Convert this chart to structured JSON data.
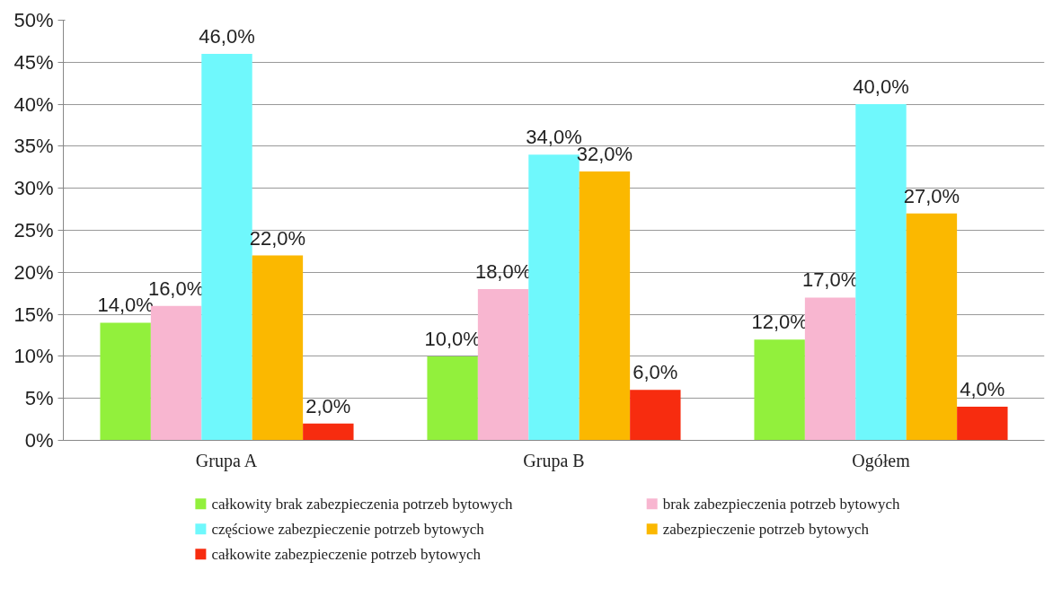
{
  "chart_data": {
    "type": "bar",
    "categories": [
      "Grupa A",
      "Grupa B",
      "Ogółem"
    ],
    "series": [
      {
        "name": "całkowity brak zabezpieczenia potrzeb bytowych",
        "color": "#92f03c",
        "values": [
          14,
          10,
          12
        ],
        "value_labels": [
          "14,0%",
          "10,0%",
          "12,0%"
        ]
      },
      {
        "name": "brak zabezpieczenia potrzeb bytowych",
        "color": "#f8b6d0",
        "values": [
          16,
          18,
          17
        ],
        "value_labels": [
          "16,0%",
          "18,0%",
          "17,0%"
        ]
      },
      {
        "name": "częściowe zabezpieczenie potrzeb bytowych",
        "color": "#6ff8fc",
        "values": [
          46,
          34,
          40
        ],
        "value_labels": [
          "46,0%",
          "34,0%",
          "40,0%"
        ]
      },
      {
        "name": "zabezpieczenie potrzeb bytowych",
        "color": "#fbb800",
        "values": [
          22,
          32,
          27
        ],
        "value_labels": [
          "22,0%",
          "32,0%",
          "27,0%"
        ]
      },
      {
        "name": "całkowite zabezpieczenie potrzeb bytowych",
        "color": "#f72c0f",
        "values": [
          2,
          6,
          4
        ],
        "value_labels": [
          "2,0%",
          "6,0%",
          "4,0%"
        ]
      }
    ],
    "ylim": [
      0,
      50
    ],
    "yticks": [
      {
        "value": 0,
        "label": "0%"
      },
      {
        "value": 5,
        "label": "5%"
      },
      {
        "value": 10,
        "label": "10%"
      },
      {
        "value": 15,
        "label": "15%"
      },
      {
        "value": 20,
        "label": "20%"
      },
      {
        "value": 25,
        "label": "25%"
      },
      {
        "value": 30,
        "label": "30%"
      },
      {
        "value": 35,
        "label": "35%"
      },
      {
        "value": 40,
        "label": "40%"
      },
      {
        "value": 45,
        "label": "45%"
      },
      {
        "value": 50,
        "label": "50%"
      }
    ],
    "grid": "y",
    "legend": "bottom"
  }
}
